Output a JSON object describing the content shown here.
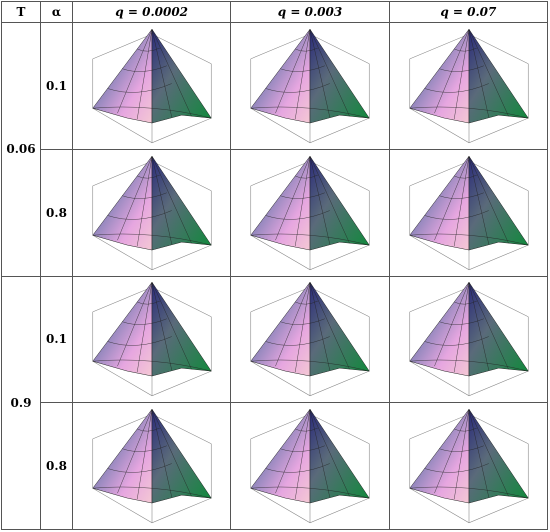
{
  "table": {
    "header": [
      "T",
      "α",
      "q = 0.0002",
      "q = 0.003",
      "q = 0.07"
    ],
    "groups": [
      {
        "T": "0.06",
        "rows": [
          {
            "alpha": "0.1"
          },
          {
            "alpha": "0.8"
          }
        ]
      },
      {
        "T": "0.9",
        "rows": [
          {
            "alpha": "0.1"
          },
          {
            "alpha": "0.8"
          }
        ]
      }
    ]
  }
}
